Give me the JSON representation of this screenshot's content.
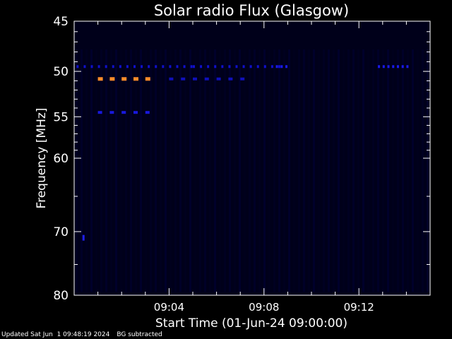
{
  "chart_data": {
    "type": "heatmap",
    "title": "Solar radio Flux (Glasgow)",
    "xlabel": "Start Time (01-Jun-24 09:00:00)",
    "ylabel": "Frequency [MHz]",
    "x_ticks": [
      "09:04",
      "09:08",
      "09:12"
    ],
    "x_tick_minutes": [
      4,
      8,
      12
    ],
    "x_range_minutes": [
      0,
      15
    ],
    "ylim": [
      45,
      80
    ],
    "y_ticks": [
      45,
      50,
      55,
      60,
      70,
      80
    ],
    "y_scale": "log",
    "background_color": "#00001a",
    "features": [
      {
        "name": "dashed",
        "freq_mhz": 49.5,
        "t_start_min": 0.1,
        "t_end_min": 5.0,
        "color": "#1010cc",
        "period_min": 0.3
      },
      {
        "name": "dashed",
        "freq_mhz": 49.5,
        "t_start_min": 5.0,
        "t_end_min": 8.6,
        "color": "#1010cc",
        "period_min": 0.3
      },
      {
        "name": "dashed",
        "freq_mhz": 49.5,
        "t_start_min": 8.5,
        "t_end_min": 9.0,
        "color": "#1a1aee",
        "period_min": 0.2
      },
      {
        "name": "dashed",
        "freq_mhz": 49.5,
        "t_start_min": 12.8,
        "t_end_min": 14.0,
        "color": "#1a1aee",
        "period_min": 0.2
      },
      {
        "name": "dashed",
        "freq_mhz": 50.8,
        "t_start_min": 1.0,
        "t_end_min": 3.2,
        "color": "#ff8c2a",
        "period_min": 0.5
      },
      {
        "name": "dashed",
        "freq_mhz": 50.8,
        "t_start_min": 4.0,
        "t_end_min": 7.2,
        "color": "#1010bb",
        "period_min": 0.5
      },
      {
        "name": "dashed",
        "freq_mhz": 54.5,
        "t_start_min": 1.0,
        "t_end_min": 3.2,
        "color": "#1818dd",
        "period_min": 0.5
      },
      {
        "name": "spot",
        "freq_mhz": 70.7,
        "t_start_min": 0.35,
        "t_end_min": 0.45,
        "color": "#2020ee",
        "period_min": 1
      }
    ]
  },
  "footer": {
    "updated": "Updated Sat Jun  1 09:48:19 2024",
    "note": "BG subtracted"
  }
}
